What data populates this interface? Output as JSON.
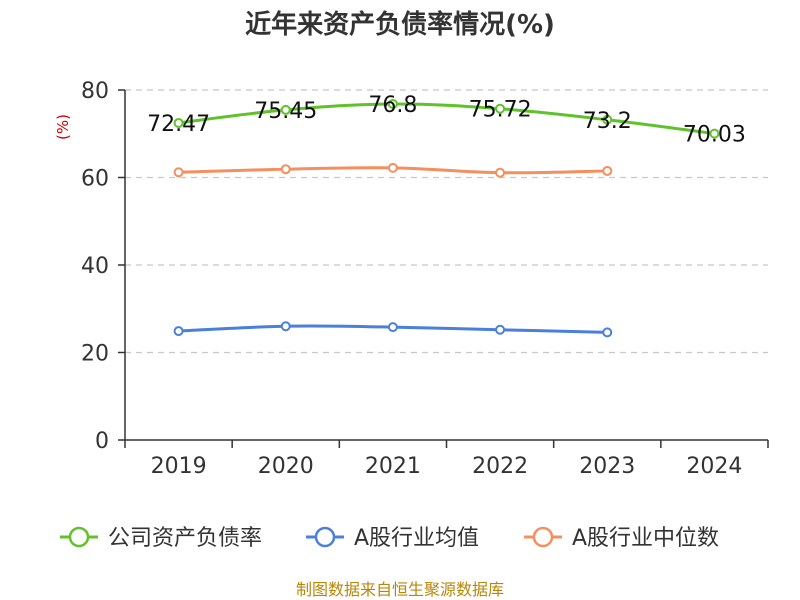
{
  "chart_data": {
    "type": "line",
    "title": "近年来资产负债率情况(%)",
    "ylabel": "(%)",
    "xlabel": "",
    "categories": [
      "2019",
      "2020",
      "2021",
      "2022",
      "2023",
      "2024"
    ],
    "ylim": [
      0,
      80
    ],
    "yticks": [
      0,
      20,
      40,
      60,
      80
    ],
    "grid": true,
    "legend_position": "bottom",
    "series": [
      {
        "name": "公司资产负债率",
        "color": "#5fc22a",
        "values": [
          72.47,
          75.45,
          76.8,
          75.72,
          73.2,
          70.03
        ],
        "data_labels": [
          "72.47",
          "75.45",
          "76.8",
          "75.72",
          "73.2",
          "70.03"
        ]
      },
      {
        "name": "A股行业均值",
        "color": "#4a7fdc",
        "values": [
          24.9,
          26.0,
          25.8,
          25.2,
          24.6,
          null
        ]
      },
      {
        "name": "A股行业中位数",
        "color": "#f58f5f",
        "values": [
          61.2,
          61.9,
          62.2,
          61.1,
          61.5,
          null
        ]
      }
    ]
  },
  "source": "制图数据来自恒生聚源数据库"
}
